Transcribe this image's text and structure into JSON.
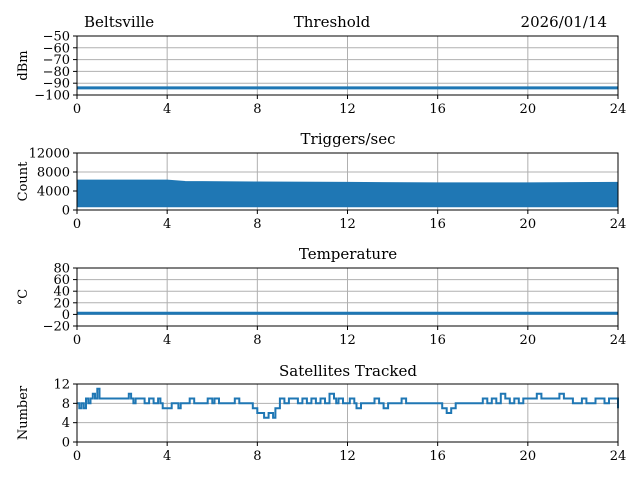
{
  "header": {
    "station": "Beltsville",
    "date": "2026/01/14"
  },
  "colors": {
    "series": "#1f77b4",
    "grid": "#b0b0b0"
  },
  "chart_data": [
    {
      "id": "threshold",
      "type": "line",
      "title": "Threshold",
      "xlabel": "",
      "ylabel": "dBm",
      "xlim": [
        0,
        24
      ],
      "ylim": [
        -100,
        -50
      ],
      "xticks": [
        "0",
        "4",
        "8",
        "12",
        "16",
        "20",
        "24"
      ],
      "yticks": [
        "−50",
        "−60",
        "−70",
        "−80",
        "−90",
        "−100"
      ],
      "ytick_values": [
        -50,
        -60,
        -70,
        -80,
        -90,
        -100
      ],
      "grid": true,
      "series": [
        {
          "x": [
            0,
            24
          ],
          "y": [
            -94,
            -94
          ]
        }
      ]
    },
    {
      "id": "triggers",
      "type": "area",
      "title": "Triggers/sec",
      "xlabel": "",
      "ylabel": "Count",
      "xlim": [
        0,
        24
      ],
      "ylim": [
        0,
        12000
      ],
      "xticks": [
        "0",
        "4",
        "8",
        "12",
        "16",
        "20",
        "24"
      ],
      "yticks": [
        "12000",
        "8000",
        "4000",
        "0"
      ],
      "ytick_values": [
        12000,
        8000,
        4000,
        0
      ],
      "grid": true,
      "series": [
        {
          "x": [
            0,
            4,
            4.8,
            8,
            12,
            16,
            20,
            24
          ],
          "upper": [
            6300,
            6300,
            6000,
            5900,
            5800,
            5700,
            5700,
            5800
          ],
          "lower": [
            700,
            700,
            700,
            700,
            700,
            700,
            700,
            700
          ]
        }
      ]
    },
    {
      "id": "temperature",
      "type": "line",
      "title": "Temperature",
      "xlabel": "",
      "ylabel": "°C",
      "xlim": [
        0,
        24
      ],
      "ylim": [
        -20,
        80
      ],
      "xticks": [
        "0",
        "4",
        "8",
        "12",
        "16",
        "20",
        "24"
      ],
      "yticks": [
        "80",
        "60",
        "40",
        "20",
        "0",
        "−20"
      ],
      "ytick_values": [
        80,
        60,
        40,
        20,
        0,
        -20
      ],
      "grid": true,
      "series": [
        {
          "x": [
            0,
            24
          ],
          "y": [
            2,
            2
          ]
        }
      ]
    },
    {
      "id": "satellites",
      "type": "line",
      "title": "Satellites Tracked",
      "xlabel": "",
      "ylabel": "Number",
      "xlim": [
        0,
        24
      ],
      "ylim": [
        0,
        12
      ],
      "xticks": [
        "0",
        "4",
        "8",
        "12",
        "16",
        "20",
        "24"
      ],
      "yticks": [
        "12",
        "8",
        "4",
        "0"
      ],
      "ytick_values": [
        12,
        8,
        4,
        0
      ],
      "grid": true,
      "series": [
        {
          "step": true,
          "x": [
            0,
            0.1,
            0.2,
            0.3,
            0.4,
            0.5,
            0.6,
            0.7,
            0.8,
            0.9,
            1.0,
            2.2,
            2.3,
            2.4,
            2.5,
            2.6,
            2.8,
            3.0,
            3.2,
            3.3,
            3.4,
            3.6,
            3.7,
            3.8,
            4.0,
            4.2,
            4.4,
            4.5,
            4.6,
            5.0,
            5.2,
            5.6,
            5.8,
            6.0,
            6.1,
            6.3,
            6.6,
            6.9,
            7.0,
            7.2,
            7.6,
            7.8,
            8.0,
            8.3,
            8.5,
            8.7,
            8.8,
            9.0,
            9.2,
            9.4,
            9.6,
            9.8,
            10.0,
            10.2,
            10.4,
            10.6,
            10.8,
            11.0,
            11.2,
            11.4,
            11.5,
            11.6,
            11.8,
            12.0,
            12.1,
            12.3,
            12.4,
            12.6,
            12.8,
            13.0,
            13.2,
            13.4,
            13.6,
            13.8,
            14.0,
            14.4,
            14.6,
            14.8,
            15.0,
            15.2,
            15.8,
            16.0,
            16.2,
            16.4,
            16.6,
            16.8,
            17.0,
            17.2,
            17.6,
            18.0,
            18.2,
            18.4,
            18.6,
            18.8,
            19.0,
            19.2,
            19.4,
            19.6,
            19.8,
            20.0,
            20.4,
            20.6,
            20.8,
            21.0,
            21.4,
            21.6,
            21.8,
            22.0,
            22.4,
            22.6,
            22.8,
            23.0,
            23.4,
            23.6,
            23.8,
            24.0
          ],
          "y": [
            8,
            7,
            8,
            7,
            9,
            8,
            9,
            10,
            9,
            11,
            9,
            9,
            10,
            9,
            8,
            9,
            9,
            8,
            9,
            9,
            8,
            9,
            8,
            7,
            7,
            8,
            8,
            7,
            8,
            9,
            8,
            8,
            9,
            8,
            9,
            8,
            8,
            8,
            9,
            8,
            8,
            7,
            6,
            5,
            6,
            5,
            7,
            9,
            8,
            9,
            9,
            8,
            9,
            8,
            9,
            8,
            9,
            8,
            10,
            9,
            8,
            9,
            8,
            8,
            9,
            8,
            7,
            8,
            8,
            8,
            9,
            8,
            7,
            8,
            8,
            9,
            8,
            8,
            8,
            8,
            8,
            8,
            7,
            6,
            7,
            8,
            8,
            8,
            8,
            9,
            8,
            9,
            8,
            10,
            9,
            8,
            9,
            8,
            9,
            9,
            10,
            9,
            9,
            9,
            10,
            9,
            9,
            8,
            9,
            8,
            8,
            9,
            8,
            9,
            9,
            7
          ]
        }
      ]
    }
  ]
}
